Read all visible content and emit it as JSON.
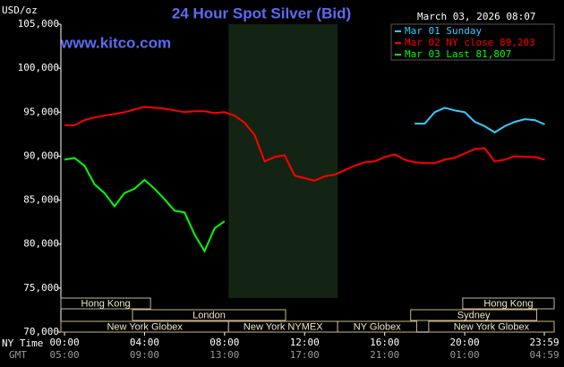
{
  "chart_data": {
    "type": "line",
    "title": "24 Hour Spot Silver (Bid)",
    "timestamp": "March 03, 2026 08:07",
    "y_label": "USD/oz",
    "site": "www.kitco.com",
    "x_row_labels": [
      "NY Time",
      "GMT"
    ],
    "x": [
      0,
      0.5,
      1,
      1.5,
      2,
      2.5,
      3,
      3.5,
      4,
      4.5,
      5,
      5.5,
      6,
      6.5,
      7,
      7.5,
      8,
      8.5,
      9,
      9.5,
      10,
      10.5,
      11,
      11.5,
      12,
      12.5,
      13,
      13.5,
      14,
      14.5,
      15,
      15.5,
      16,
      16.5,
      17,
      17.5,
      18,
      18.5,
      19,
      19.5,
      20,
      20.5,
      21,
      21.5,
      22,
      22.5,
      23,
      23.5,
      24
    ],
    "series": [
      {
        "name": "Mar 01 Sunday",
        "color": "#33ccff",
        "values": [
          null,
          null,
          null,
          null,
          null,
          null,
          null,
          null,
          null,
          null,
          null,
          null,
          null,
          null,
          null,
          null,
          null,
          null,
          null,
          null,
          null,
          null,
          null,
          null,
          null,
          null,
          null,
          null,
          null,
          null,
          null,
          null,
          null,
          null,
          null,
          93700,
          93700,
          95000,
          95500,
          95200,
          95000,
          93900,
          93400,
          92700,
          93400,
          93900,
          94200,
          94100,
          93600
        ]
      },
      {
        "name": "Mar 02 NY close 89,203",
        "color": "#ff0000",
        "values": [
          93500,
          93500,
          94100,
          94400,
          94600,
          94800,
          95000,
          95300,
          95600,
          95500,
          95400,
          95200,
          95000,
          95100,
          95100,
          94900,
          95000,
          94600,
          93800,
          92400,
          89400,
          89900,
          90100,
          87800,
          87500,
          87200,
          87700,
          87900,
          88400,
          88900,
          89300,
          89400,
          89900,
          90200,
          89600,
          89300,
          89200,
          89200,
          89600,
          89800,
          90300,
          90800,
          90900,
          89400,
          89600,
          90000,
          89900,
          89900,
          89600
        ]
      },
      {
        "name": "Mar 03 Last 81,807",
        "color": "#00ff00",
        "values": [
          89600,
          89800,
          88900,
          86800,
          85800,
          84300,
          85800,
          86300,
          87300,
          86300,
          85100,
          83800,
          83600,
          81100,
          79200,
          81800,
          82600,
          null,
          null,
          null,
          null,
          null,
          null,
          null,
          null,
          null,
          null,
          null,
          null,
          null,
          null,
          null,
          null,
          null,
          null,
          null,
          null,
          null,
          null,
          null,
          null,
          null,
          null,
          null,
          null,
          null,
          null,
          null,
          null
        ]
      }
    ],
    "xlim": [
      -0.18,
      24.47
    ],
    "xticks": [
      {
        "value": 0,
        "label": "00:00"
      },
      {
        "value": 4,
        "label": "04:00"
      },
      {
        "value": 8,
        "label": "08:00"
      },
      {
        "value": 12,
        "label": "12:00"
      },
      {
        "value": 16,
        "label": "16:00"
      },
      {
        "value": 20,
        "label": "20:00"
      },
      {
        "value": 23.98,
        "label": "23:59"
      }
    ],
    "gmt_ticks": [
      "05:00",
      "09:00",
      "13:00",
      "17:00",
      "21:00",
      "01:00",
      "04:59"
    ],
    "ylim": [
      70000,
      105000
    ],
    "yticks": [
      {
        "value": 70000,
        "label": "70,000"
      },
      {
        "value": 75000,
        "label": "75,000"
      },
      {
        "value": 80000,
        "label": "80,000"
      },
      {
        "value": 85000,
        "label": "85,000"
      },
      {
        "value": 90000,
        "label": "90,000"
      },
      {
        "value": 95000,
        "label": "95,000"
      },
      {
        "value": 100000,
        "label": "100,000"
      },
      {
        "value": 105000,
        "label": "105,000"
      }
    ],
    "sessions": [
      {
        "label": "Hong Kong",
        "start": -0.18,
        "end": 4.3,
        "row": 0
      },
      {
        "label": "Hong Kong",
        "start": 19.9,
        "end": 24.47,
        "row": 0
      },
      {
        "label": "London",
        "start": 3.4,
        "end": 11.05,
        "row": 1
      },
      {
        "label": "Sydney",
        "start": 17.3,
        "end": 23.6,
        "row": 1
      },
      {
        "label": "New York Globex",
        "start": -0.18,
        "end": 8.2,
        "row": 2
      },
      {
        "label": "New York NYMEX",
        "start": 8.2,
        "end": 13.65,
        "row": 2,
        "shade": true
      },
      {
        "label": "NY Globex",
        "start": 13.65,
        "end": 17.6,
        "row": 2
      },
      {
        "label": "New York Globex",
        "start": 18.2,
        "end": 24.47,
        "row": 2
      }
    ]
  }
}
